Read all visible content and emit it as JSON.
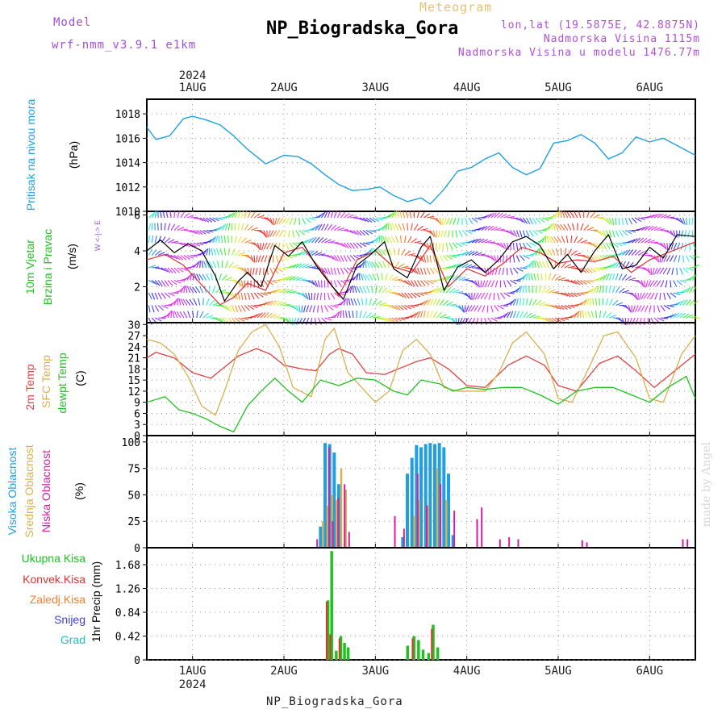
{
  "header": {
    "model_label": "Model",
    "model_name": "wrf-nmm_v3.9.1 e1km",
    "meteogram_label": "Meteogram",
    "station_title": "NP_Biogradska_Gora",
    "lonlat": "lon,lat (19.5875E, 42.8875N)",
    "altitude": "Nadmorska Visina 1115m",
    "altitude_model": "Nadmorska Visina u modelu 1476.77m"
  },
  "footer": {
    "station": "NP_Biogradska_Gora",
    "credit": "made by Angel"
  },
  "time_axis": {
    "year": "2024",
    "day_labels": [
      "1AUG",
      "2AUG",
      "3AUG",
      "4AUG",
      "5AUG",
      "6AUG"
    ],
    "range_days": [
      0.5,
      6.5
    ]
  },
  "colors": {
    "pressure": "#20a0e0",
    "wind_speed": "#000000",
    "wind_gust": "#e03030",
    "temp2m": "#e04040",
    "sfc_temp": "#d8b050",
    "dewpoint": "#20c020",
    "cloud_high": "#20a0e0",
    "cloud_mid": "#d8b050",
    "cloud_low": "#d020a0",
    "precip_total": "#20c020",
    "precip_conv": "#e03030"
  },
  "chart_data": [
    {
      "type": "line",
      "panel": "pressure",
      "ylabel": [
        "Pritisak na nivou mora",
        "(hPa)"
      ],
      "yticks": [
        1010,
        1012,
        1014,
        1016,
        1018
      ],
      "ylim": [
        1010,
        1019.2
      ],
      "grid": true,
      "series": [
        {
          "name": "Pritisak na nivou mora",
          "x": [
            0.5,
            0.6,
            0.75,
            0.9,
            1.0,
            1.15,
            1.3,
            1.45,
            1.6,
            1.8,
            2.0,
            2.15,
            2.3,
            2.45,
            2.6,
            2.75,
            2.9,
            3.05,
            3.2,
            3.35,
            3.5,
            3.6,
            3.75,
            3.9,
            4.05,
            4.2,
            4.35,
            4.5,
            4.65,
            4.8,
            4.95,
            5.1,
            5.25,
            5.4,
            5.55,
            5.7,
            5.85,
            6.0,
            6.15,
            6.3,
            6.5
          ],
          "values": [
            1016.9,
            1015.9,
            1016.2,
            1017.6,
            1017.8,
            1017.5,
            1017.1,
            1016.2,
            1015.1,
            1013.9,
            1014.6,
            1014.5,
            1013.9,
            1013.0,
            1012.2,
            1011.7,
            1011.8,
            1012.0,
            1011.3,
            1010.8,
            1011.1,
            1010.6,
            1011.8,
            1013.3,
            1013.6,
            1014.3,
            1014.8,
            1013.6,
            1013.0,
            1013.5,
            1015.6,
            1015.8,
            1016.3,
            1015.6,
            1014.3,
            1014.8,
            1016.1,
            1015.7,
            1016.0,
            1015.4,
            1014.6
          ]
        }
      ]
    },
    {
      "type": "line",
      "panel": "wind",
      "ylabel": [
        "10m Vjetar",
        "Brzina i Pravac",
        "(m/s)"
      ],
      "compass_label": "W <-|-> E",
      "yticks": [
        2,
        4,
        6
      ],
      "ylim": [
        0,
        6.2
      ],
      "grid": true,
      "series": [
        {
          "name": "speed",
          "x": [
            0.5,
            0.65,
            0.8,
            0.95,
            1.1,
            1.25,
            1.35,
            1.5,
            1.6,
            1.75,
            1.9,
            2.05,
            2.2,
            2.35,
            2.5,
            2.65,
            2.8,
            2.95,
            3.1,
            3.2,
            3.35,
            3.5,
            3.6,
            3.75,
            3.9,
            4.05,
            4.2,
            4.35,
            4.5,
            4.65,
            4.8,
            4.95,
            5.1,
            5.25,
            5.4,
            5.55,
            5.7,
            5.85,
            6.0,
            6.15,
            6.3,
            6.5
          ],
          "values": [
            4.0,
            4.6,
            3.9,
            4.4,
            4.0,
            2.6,
            1.2,
            2.3,
            2.8,
            2.0,
            4.3,
            3.7,
            4.5,
            3.2,
            2.2,
            1.3,
            3.2,
            3.8,
            4.5,
            3.0,
            2.5,
            4.2,
            4.8,
            1.8,
            3.1,
            3.5,
            2.8,
            3.5,
            4.5,
            4.8,
            4.3,
            3.0,
            3.8,
            2.8,
            4.0,
            4.9,
            3.0,
            3.2,
            4.2,
            3.6,
            4.9,
            4.8
          ]
        },
        {
          "name": "gust",
          "x": [
            0.5,
            0.7,
            0.9,
            1.1,
            1.3,
            1.45,
            1.6,
            1.8,
            2.0,
            2.2,
            2.4,
            2.6,
            2.8,
            3.0,
            3.2,
            3.4,
            3.6,
            3.8,
            4.0,
            4.2,
            4.4,
            4.6,
            4.8,
            5.0,
            5.2,
            5.4,
            5.6,
            5.8,
            6.0,
            6.2,
            6.5
          ],
          "values": [
            3.5,
            3.8,
            3.2,
            2.1,
            1.0,
            1.4,
            2.2,
            1.8,
            3.9,
            4.2,
            3.0,
            1.5,
            3.5,
            4.0,
            3.1,
            2.8,
            4.3,
            2.0,
            3.0,
            2.6,
            3.3,
            4.2,
            3.9,
            3.3,
            3.5,
            3.4,
            3.7,
            2.8,
            3.5,
            3.9,
            4.5
          ]
        }
      ]
    },
    {
      "type": "line",
      "panel": "temperature",
      "ylabel": [
        "2m Temp",
        "SFC Temp",
        "dewpt Temp",
        "(C)"
      ],
      "yticks": [
        0,
        3,
        6,
        9,
        12,
        15,
        18,
        21,
        24,
        27,
        30
      ],
      "ylim": [
        0,
        30.5
      ],
      "grid": true,
      "series": [
        {
          "name": "2m Temp",
          "x": [
            0.5,
            0.6,
            0.8,
            1.0,
            1.2,
            1.35,
            1.5,
            1.7,
            1.85,
            2.0,
            2.2,
            2.35,
            2.5,
            2.6,
            2.75,
            2.9,
            3.1,
            3.3,
            3.45,
            3.6,
            3.8,
            4.0,
            4.2,
            4.45,
            4.65,
            4.85,
            5.0,
            5.2,
            5.45,
            5.65,
            5.85,
            6.05,
            6.3,
            6.5
          ],
          "values": [
            21,
            22.5,
            21,
            17,
            15.5,
            18.5,
            21.5,
            23.5,
            22,
            19,
            18,
            17.5,
            22,
            23.5,
            22,
            17,
            16.5,
            18.5,
            20,
            21,
            18,
            13.5,
            13,
            19,
            21.5,
            19,
            13.5,
            12,
            19.5,
            21.5,
            17.5,
            13,
            18,
            22
          ]
        },
        {
          "name": "SFC Temp",
          "x": [
            0.5,
            0.65,
            0.8,
            0.95,
            1.1,
            1.25,
            1.35,
            1.5,
            1.65,
            1.8,
            1.95,
            2.1,
            2.3,
            2.45,
            2.55,
            2.7,
            2.85,
            3.0,
            3.15,
            3.3,
            3.45,
            3.6,
            3.75,
            3.9,
            4.05,
            4.2,
            4.35,
            4.5,
            4.65,
            4.85,
            5.0,
            5.15,
            5.35,
            5.5,
            5.65,
            5.85,
            6.0,
            6.15,
            6.35,
            6.5
          ],
          "values": [
            26,
            25,
            22,
            16,
            8,
            5.5,
            12,
            23,
            28,
            30,
            24,
            13,
            10.5,
            26,
            29,
            17,
            13,
            9,
            12,
            23,
            26,
            22,
            13,
            12,
            12,
            12,
            17,
            25,
            28,
            22,
            10,
            9,
            19,
            27,
            28,
            21,
            10,
            9,
            22,
            27
          ]
        },
        {
          "name": "dewpt Temp",
          "x": [
            0.5,
            0.7,
            0.85,
            1.0,
            1.15,
            1.3,
            1.45,
            1.6,
            1.75,
            1.9,
            2.05,
            2.2,
            2.4,
            2.6,
            2.8,
            3.0,
            3.2,
            3.35,
            3.5,
            3.7,
            3.85,
            4.0,
            4.2,
            4.4,
            4.6,
            4.8,
            5.0,
            5.2,
            5.4,
            5.6,
            5.8,
            6.0,
            6.2,
            6.4,
            6.5
          ],
          "values": [
            9,
            10.5,
            7,
            6,
            4.5,
            2.5,
            1,
            8,
            12,
            15.5,
            12,
            9,
            15,
            13.5,
            15.5,
            15,
            12,
            11,
            15,
            14,
            12,
            13,
            12.5,
            13,
            13,
            11,
            8.5,
            12,
            13,
            13,
            11,
            9,
            13,
            16,
            10
          ]
        }
      ]
    },
    {
      "type": "bar",
      "panel": "cloud",
      "ylabel": [
        "Visoka Oblacnost",
        "Srednja Oblacnost",
        "Niska Oblacnost",
        "(%)"
      ],
      "yticks": [
        0,
        25,
        50,
        75,
        100
      ],
      "ylim": [
        0,
        106
      ],
      "grid": true,
      "series": [
        {
          "name": "Visoka Oblacnost",
          "x": [
            2.35,
            2.4,
            2.45,
            2.5,
            2.55,
            2.6,
            3.3,
            3.35,
            3.4,
            3.45,
            3.5,
            3.55,
            3.6,
            3.65,
            3.7,
            3.75,
            3.8,
            3.85
          ],
          "values": [
            0,
            20,
            99,
            98,
            90,
            60,
            10,
            70,
            85,
            97,
            95,
            98,
            99,
            98,
            99,
            95,
            70,
            12
          ]
        },
        {
          "name": "Srednja Oblacnost",
          "x": [
            2.4,
            2.45,
            2.5,
            2.55,
            2.6,
            2.65,
            3.3,
            3.35,
            3.4,
            3.45,
            3.55,
            3.65,
            3.75
          ],
          "values": [
            25,
            40,
            50,
            45,
            75,
            55,
            0,
            0,
            30,
            45,
            40,
            75,
            45
          ]
        },
        {
          "name": "Niska Oblacnost",
          "x": [
            2.35,
            2.48,
            2.52,
            2.58,
            2.65,
            2.7,
            3.2,
            3.3,
            3.45,
            3.55,
            3.7,
            3.85,
            4.1,
            4.15,
            4.35,
            4.45,
            4.55,
            5.25,
            5.3,
            6.35,
            6.4
          ],
          "values": [
            8,
            95,
            25,
            47,
            60,
            15,
            30,
            18,
            70,
            40,
            60,
            35,
            27,
            38,
            8,
            10,
            8,
            7,
            5,
            8,
            8
          ]
        }
      ]
    },
    {
      "type": "bar",
      "panel": "precipitation",
      "ylabel": [
        "Ukupna Kisa",
        "Konvek.Kisa",
        "Zaledj.Kisa",
        "Snijeg",
        "Grad",
        "1hr Precip (mm)"
      ],
      "yticks": [
        0,
        0.42,
        0.84,
        1.26,
        1.68
      ],
      "ylim": [
        0,
        1.98
      ],
      "grid": true,
      "series": [
        {
          "name": "Ukupna Kisa",
          "x": [
            2.48,
            2.52,
            2.57,
            2.62,
            2.66,
            2.7,
            3.35,
            3.42,
            3.47,
            3.52,
            3.58,
            3.63,
            3.68
          ],
          "values": [
            1.05,
            1.92,
            0.16,
            0.42,
            0.3,
            0.22,
            0.25,
            0.42,
            0.35,
            0.18,
            0.12,
            0.62,
            0.22
          ]
        },
        {
          "name": "Konvek.Kisa",
          "x": [
            2.48,
            2.52,
            2.62,
            3.42,
            3.63
          ],
          "values": [
            1.03,
            0.45,
            0.38,
            0.38,
            0.55
          ]
        }
      ]
    }
  ]
}
